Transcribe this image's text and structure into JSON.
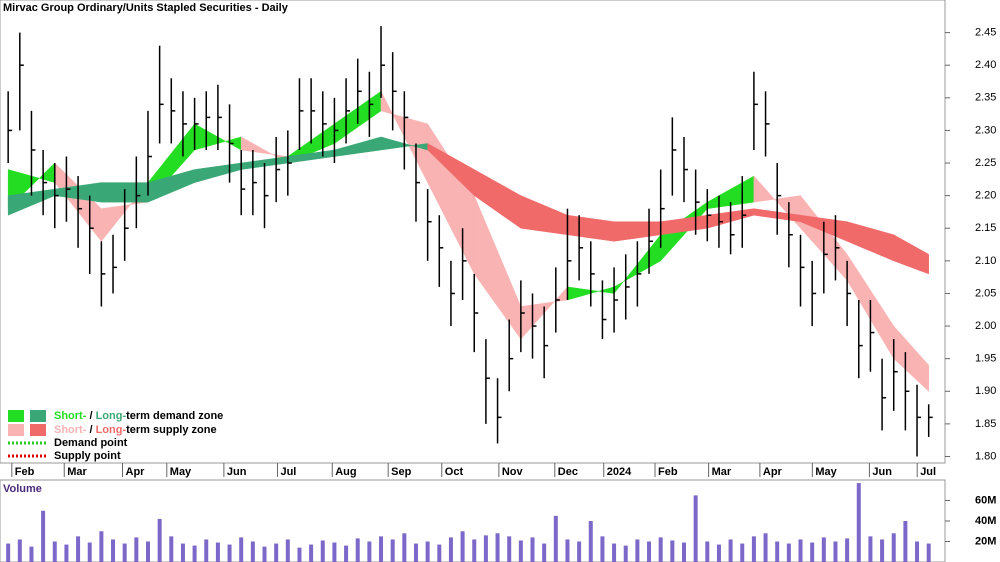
{
  "chart_data": {
    "type": "ohlc",
    "title": "Mirvac Group Ordinary/Units Stapled Securities - Daily",
    "xlim": [
      -0.7,
      80.4
    ],
    "xticks": [
      {
        "value": 1.0,
        "label": "Feb"
      },
      {
        "value": 5.5,
        "label": "Mar"
      },
      {
        "value": 10.5,
        "label": "Apr"
      },
      {
        "value": 14.3,
        "label": "May"
      },
      {
        "value": 19.2,
        "label": "Jun"
      },
      {
        "value": 23.8,
        "label": "Jul"
      },
      {
        "value": 28.5,
        "label": "Aug"
      },
      {
        "value": 33.3,
        "label": "Sep"
      },
      {
        "value": 37.9,
        "label": "Oct"
      },
      {
        "value": 42.8,
        "label": "Nov"
      },
      {
        "value": 47.6,
        "label": "Dec"
      },
      {
        "value": 51.8,
        "label": "2024"
      },
      {
        "value": 56.2,
        "label": "Feb"
      },
      {
        "value": 60.8,
        "label": "Mar"
      },
      {
        "value": 65.2,
        "label": "Apr"
      },
      {
        "value": 69.7,
        "label": "May"
      },
      {
        "value": 74.6,
        "label": "Jun"
      },
      {
        "value": 78.7,
        "label": "Jul"
      }
    ],
    "ylim": [
      1.79,
      2.5
    ],
    "yticks": [
      {
        "value": 1.8,
        "label": "1.80"
      },
      1.85,
      {
        "value": 1.9,
        "label": "1.90"
      },
      1.95,
      {
        "value": 2.0,
        "label": "2.00"
      },
      2.05,
      {
        "value": 2.1,
        "label": "2.10"
      },
      2.15,
      {
        "value": 2.2,
        "label": "2.20"
      },
      2.25,
      {
        "value": 2.3,
        "label": "2.30"
      },
      2.35,
      {
        "value": 2.4,
        "label": "2.40"
      },
      2.45
    ],
    "bar_color": "#000000",
    "high": [
      2.36,
      2.45,
      2.33,
      2.27,
      2.25,
      2.26,
      2.23,
      2.2,
      2.13,
      2.14,
      2.21,
      2.26,
      2.33,
      2.43,
      2.38,
      2.36,
      2.35,
      2.36,
      2.37,
      2.34,
      2.27,
      2.27,
      2.25,
      2.29,
      2.3,
      2.38,
      2.38,
      2.36,
      2.35,
      2.38,
      2.41,
      2.39,
      2.46,
      2.42,
      2.36,
      2.28,
      2.21,
      2.17,
      2.1,
      2.15,
      2.08,
      1.98,
      1.92,
      2.01,
      2.07,
      2.05,
      2.03,
      2.09,
      2.18,
      2.17,
      2.13,
      2.07,
      2.09,
      2.11,
      2.13,
      2.18,
      2.24,
      2.32,
      2.29,
      2.24,
      2.21,
      2.2,
      2.19,
      2.23,
      2.39,
      2.36,
      2.25,
      2.19,
      2.14,
      2.1,
      2.16,
      2.17,
      2.1,
      2.04,
      2.04,
      1.95,
      1.98,
      1.96,
      1.91,
      1.88
    ],
    "low": [
      2.25,
      2.3,
      2.2,
      2.17,
      2.15,
      2.16,
      2.12,
      2.08,
      2.03,
      2.05,
      2.1,
      2.15,
      2.2,
      2.28,
      2.28,
      2.26,
      2.27,
      2.27,
      2.27,
      2.22,
      2.17,
      2.17,
      2.15,
      2.19,
      2.2,
      2.27,
      2.28,
      2.26,
      2.25,
      2.28,
      2.31,
      2.29,
      2.35,
      2.3,
      2.24,
      2.16,
      2.1,
      2.06,
      2.0,
      2.04,
      1.96,
      1.85,
      1.82,
      1.9,
      1.96,
      1.95,
      1.92,
      1.99,
      2.04,
      2.07,
      2.03,
      1.98,
      1.99,
      2.01,
      2.03,
      2.08,
      2.12,
      2.2,
      2.19,
      2.14,
      2.13,
      2.12,
      2.11,
      2.12,
      2.27,
      2.26,
      2.14,
      2.09,
      2.03,
      2.0,
      2.05,
      2.07,
      2.0,
      1.92,
      1.93,
      1.84,
      1.87,
      1.84,
      1.8,
      1.83
    ],
    "close": [
      2.3,
      2.4,
      2.27,
      2.22,
      2.2,
      2.21,
      2.18,
      2.15,
      2.08,
      2.09,
      2.15,
      2.2,
      2.26,
      2.34,
      2.33,
      2.31,
      2.31,
      2.32,
      2.32,
      2.28,
      2.21,
      2.22,
      2.2,
      2.24,
      2.25,
      2.33,
      2.33,
      2.31,
      2.3,
      2.33,
      2.36,
      2.34,
      2.4,
      2.36,
      2.32,
      2.22,
      2.16,
      2.12,
      2.05,
      2.1,
      2.02,
      1.92,
      1.86,
      1.95,
      2.02,
      2.0,
      1.97,
      2.04,
      2.1,
      2.12,
      2.08,
      2.01,
      2.04,
      2.06,
      2.08,
      2.13,
      2.18,
      2.27,
      2.24,
      2.19,
      2.17,
      2.16,
      2.14,
      2.17,
      2.34,
      2.31,
      2.2,
      2.14,
      2.09,
      2.05,
      2.11,
      2.12,
      2.05,
      1.97,
      1.99,
      1.89,
      1.93,
      1.9,
      1.86,
      1.86
    ],
    "ribbons": [
      {
        "x": [
          0,
          4,
          8,
          12,
          16,
          20,
          24,
          28,
          32,
          36,
          40,
          44,
          48,
          52,
          56,
          60,
          64,
          68,
          72,
          76,
          79
        ],
        "fast": [
          2.24,
          2.22,
          2.13,
          2.22,
          2.31,
          2.27,
          2.26,
          2.31,
          2.36,
          2.22,
          2.08,
          1.98,
          2.06,
          2.05,
          2.14,
          2.19,
          2.23,
          2.15,
          2.07,
          1.95,
          1.9
        ],
        "slow": [
          2.18,
          2.25,
          2.18,
          2.19,
          2.27,
          2.29,
          2.25,
          2.28,
          2.33,
          2.31,
          2.2,
          2.03,
          2.04,
          2.06,
          2.1,
          2.18,
          2.19,
          2.2,
          2.11,
          2.0,
          1.94
        ],
        "demand_color": "#22dd22",
        "supply_color": "#f9b3b3"
      },
      {
        "x": [
          0,
          4,
          8,
          12,
          16,
          20,
          24,
          28,
          32,
          36,
          40,
          44,
          48,
          52,
          56,
          60,
          64,
          68,
          72,
          76,
          79
        ],
        "fast": [
          2.2,
          2.21,
          2.22,
          2.22,
          2.24,
          2.25,
          2.26,
          2.27,
          2.29,
          2.27,
          2.2,
          2.15,
          2.14,
          2.13,
          2.14,
          2.15,
          2.17,
          2.16,
          2.13,
          2.1,
          2.08
        ],
        "slow": [
          2.17,
          2.2,
          2.19,
          2.19,
          2.22,
          2.24,
          2.25,
          2.26,
          2.27,
          2.28,
          2.24,
          2.2,
          2.17,
          2.16,
          2.16,
          2.17,
          2.18,
          2.17,
          2.16,
          2.14,
          2.11
        ],
        "demand_color": "#3aa876",
        "supply_color": "#f06a6a"
      }
    ],
    "legend": {
      "short": "Short-",
      "sep": " / ",
      "long": "Long-",
      "demand_zone": "term demand zone",
      "supply_zone": "term supply zone",
      "demand_point": "Demand point",
      "supply_point": "Supply point",
      "demand_point_color": "#22cc22",
      "supply_point_color": "#dd0000"
    },
    "volume": {
      "label": "Volume",
      "color": "#7b68c8",
      "ylim": [
        0,
        80
      ],
      "yticks": [
        {
          "value": 20,
          "label": "20M"
        },
        {
          "value": 40,
          "label": "40M"
        },
        {
          "value": 60,
          "label": "60M"
        }
      ],
      "values": [
        18,
        22,
        15,
        50,
        20,
        17,
        25,
        19,
        30,
        22,
        18,
        24,
        20,
        42,
        25,
        18,
        16,
        22,
        19,
        17,
        24,
        20,
        15,
        18,
        22,
        14,
        17,
        21,
        19,
        16,
        23,
        20,
        25,
        22,
        28,
        18,
        20,
        17,
        24,
        30,
        22,
        26,
        28,
        25,
        21,
        24,
        18,
        45,
        22,
        20,
        40,
        25,
        18,
        16,
        22,
        20,
        24,
        21,
        19,
        65,
        20,
        17,
        22,
        18,
        25,
        28,
        20,
        18,
        22,
        19,
        24,
        20,
        23,
        77,
        25,
        22,
        28,
        40,
        20,
        18
      ]
    }
  }
}
